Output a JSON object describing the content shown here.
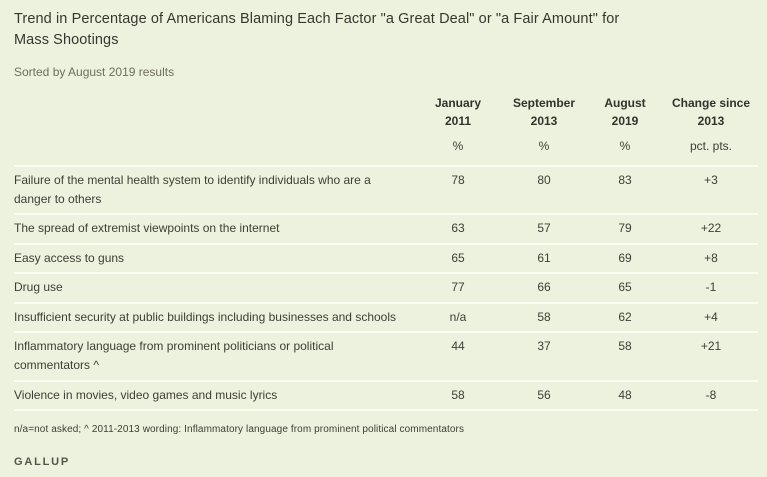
{
  "page": {
    "title_full": "Trend in Percentage of Americans Blaming Each Factor \"a Great Deal\" or \"a Fair Amount\" for Mass Shootings",
    "title_line1": "Trend in Percentage of Americans Blaming Each Factor \"a Great Deal\" or \"a Fair Amount\" for",
    "title_line2": "Mass Shootings",
    "subtitle": "Sorted by August 2019 results",
    "footnote": "n/a=not asked; ^ 2011-2013 wording: Inflammatory language from prominent political commentators",
    "brand": "GALLUP"
  },
  "colors": {
    "background": "#ECF2DE",
    "divider": "#FBFDF2",
    "title_text": "#38372F",
    "body_text": "#3F3E36",
    "muted_text": "#6F6E5D",
    "brand_text": "#55544A"
  },
  "chart_data": {
    "type": "table",
    "title": "Trend in Percentage of Americans Blaming Each Factor \"a Great Deal\" or \"a Fair Amount\" for Mass Shootings",
    "subtitle": "Sorted by August 2019 results",
    "columns": [
      {
        "label": "January 2011",
        "line1": "January",
        "line2": "2011",
        "unit": "%"
      },
      {
        "label": "September 2013",
        "line1": "September",
        "line2": "2013",
        "unit": "%"
      },
      {
        "label": "August 2019",
        "line1": "August",
        "line2": "2019",
        "unit": "%"
      },
      {
        "label": "Change since 2013",
        "line1": "Change since",
        "line2": "2013",
        "unit": "pct. pts."
      }
    ],
    "rows": [
      {
        "factor": "Failure of the mental health system to identify individuals who are a danger to others",
        "values": [
          "78",
          "80",
          "83",
          "+3"
        ]
      },
      {
        "factor": "The spread of extremist viewpoints on the internet",
        "values": [
          "63",
          "57",
          "79",
          "+22"
        ]
      },
      {
        "factor": "Easy access to guns",
        "values": [
          "65",
          "61",
          "69",
          "+8"
        ]
      },
      {
        "factor": "Drug use",
        "values": [
          "77",
          "66",
          "65",
          "-1"
        ]
      },
      {
        "factor": "Insufficient security at public buildings including businesses and schools",
        "values": [
          "n/a",
          "58",
          "62",
          "+4"
        ]
      },
      {
        "factor": "Inflammatory language from prominent politicians or political commentators ^",
        "values": [
          "44",
          "37",
          "58",
          "+21"
        ]
      },
      {
        "factor": "Violence in movies, video games and music lyrics",
        "values": [
          "58",
          "56",
          "48",
          "-8"
        ]
      }
    ],
    "footnote": "n/a=not asked; ^ 2011-2013 wording: Inflammatory language from prominent political commentators",
    "source_brand": "GALLUP"
  }
}
